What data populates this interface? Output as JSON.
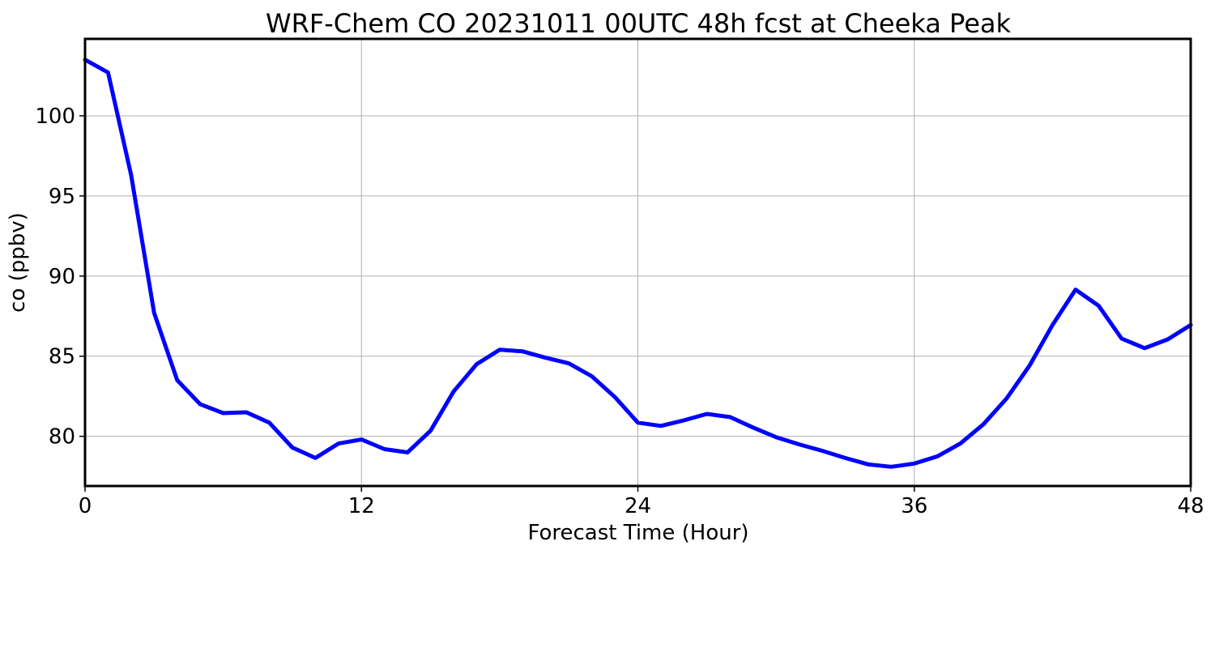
{
  "chart_data": {
    "type": "line",
    "title": "WRF-Chem CO  20231011 00UTC 48h fcst at Cheeka Peak",
    "xlabel": "Forecast Time (Hour)",
    "ylabel": "co  (ppbv)",
    "xlim": [
      0,
      48
    ],
    "ylim": [
      76.9,
      104.8
    ],
    "xticks": [
      0,
      12,
      24,
      36,
      48
    ],
    "yticks": [
      80,
      85,
      90,
      95,
      100
    ],
    "grid": true,
    "line_color": "#0000ff",
    "series": [
      {
        "x": [
          0,
          1,
          2,
          3,
          4,
          5,
          6,
          7,
          8,
          9,
          10,
          11,
          12,
          13,
          14,
          15,
          16,
          17,
          18,
          19,
          20,
          21,
          22,
          23,
          24,
          25,
          26,
          27,
          28,
          29,
          30,
          31,
          32,
          33,
          34,
          35,
          36,
          37,
          38,
          39,
          40,
          41,
          42,
          43,
          44,
          45,
          46,
          47,
          48
        ],
        "values": [
          103.5,
          102.7,
          96.3,
          87.7,
          83.5,
          82.0,
          81.45,
          81.5,
          80.85,
          79.3,
          78.65,
          79.55,
          79.8,
          79.2,
          79.0,
          80.35,
          82.8,
          84.5,
          85.4,
          85.3,
          84.9,
          84.55,
          83.75,
          82.45,
          80.85,
          80.65,
          81.0,
          81.4,
          81.2,
          80.55,
          79.95,
          79.5,
          79.1,
          78.65,
          78.25,
          78.1,
          78.3,
          78.75,
          79.55,
          80.75,
          82.35,
          84.4,
          86.95,
          89.15,
          88.15,
          86.1,
          85.5,
          86.05,
          86.95
        ]
      }
    ]
  }
}
